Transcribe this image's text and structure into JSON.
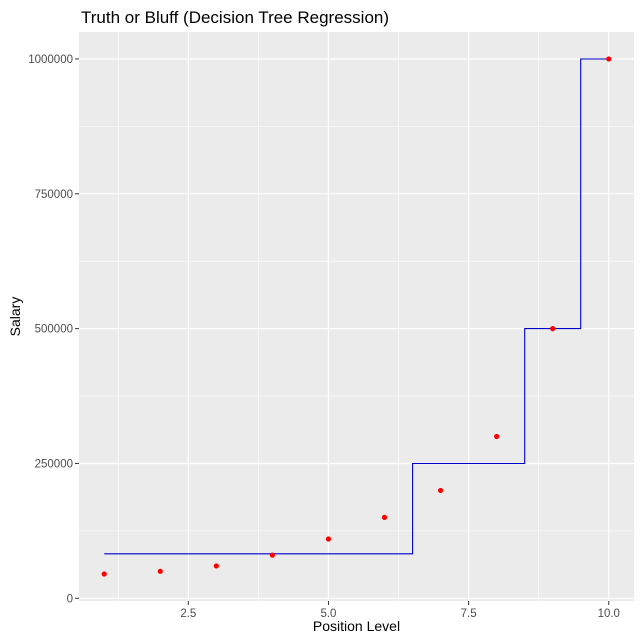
{
  "chart_data": {
    "type": "scatter",
    "title": "Truth or Bluff (Decision Tree Regression)",
    "xlabel": "Position Level",
    "ylabel": "Salary",
    "xlim": [
      0.55,
      10.45
    ],
    "ylim": [
      -5000,
      1050000
    ],
    "grid": true,
    "legend": "none",
    "x_ticks": [
      2.5,
      5.0,
      7.5,
      10.0
    ],
    "x_tick_labels": [
      "2.5",
      "5.0",
      "7.5",
      "10.0"
    ],
    "y_ticks": [
      0,
      250000,
      500000,
      750000,
      1000000
    ],
    "y_tick_labels": [
      "0",
      "250000",
      "500000",
      "750000",
      "1000000"
    ],
    "points": {
      "color": "#ff0000",
      "x": [
        1,
        2,
        3,
        4,
        5,
        6,
        7,
        8,
        9,
        10
      ],
      "y": [
        45000,
        50000,
        60000,
        80000,
        110000,
        150000,
        200000,
        300000,
        500000,
        1000000
      ]
    },
    "line": {
      "color": "#0000cc",
      "x": [
        1.0,
        6.5,
        6.5,
        8.5,
        8.5,
        9.5,
        9.5,
        10.0
      ],
      "y": [
        82500,
        82500,
        250000,
        250000,
        500000,
        500000,
        1000000,
        1000000
      ]
    },
    "colors": {
      "panel_background": "#ebebeb",
      "grid_major": "#ffffff",
      "axis_text": "#4d4d4d"
    }
  }
}
